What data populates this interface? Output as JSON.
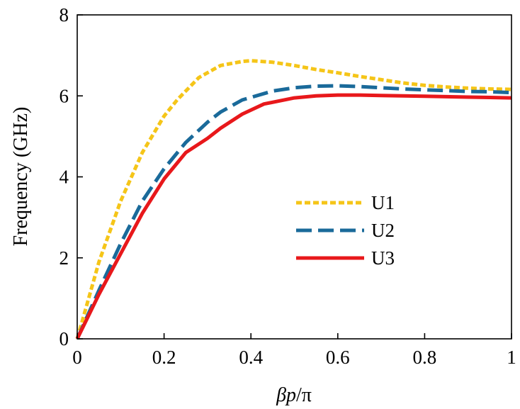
{
  "chart_data": {
    "type": "line",
    "title": "",
    "xlabel_parts": [
      {
        "text": "β",
        "italic": true
      },
      {
        "text": "p",
        "italic": true
      },
      {
        "text": "/π",
        "italic": false
      }
    ],
    "ylabel": "Frequency (GHz)",
    "xlim": [
      0,
      1
    ],
    "ylim": [
      0,
      8
    ],
    "xticks": [
      0,
      0.2,
      0.4,
      0.6,
      0.8,
      1
    ],
    "xtick_labels": [
      "0",
      "0.2",
      "0.4",
      "0.6",
      "0.8",
      "1"
    ],
    "yticks": [
      0,
      2,
      4,
      6,
      8
    ],
    "ytick_labels": [
      "0",
      "2",
      "4",
      "6",
      "8"
    ],
    "grid": false,
    "legend_position": "center-right",
    "series": [
      {
        "name": "U1",
        "color": "#F5C518",
        "dash": "dotted",
        "x": [
          0,
          0.05,
          0.1,
          0.15,
          0.2,
          0.23,
          0.28,
          0.33,
          0.38,
          0.4,
          0.45,
          0.5,
          0.55,
          0.6,
          0.65,
          0.7,
          0.75,
          0.8,
          0.85,
          0.9,
          0.95,
          1.0
        ],
        "y": [
          0,
          1.9,
          3.4,
          4.6,
          5.5,
          5.9,
          6.45,
          6.75,
          6.85,
          6.87,
          6.83,
          6.75,
          6.65,
          6.57,
          6.48,
          6.4,
          6.32,
          6.26,
          6.22,
          6.19,
          6.17,
          6.16
        ]
      },
      {
        "name": "U2",
        "color": "#1A6A9A",
        "dash": "dashed",
        "x": [
          0,
          0.05,
          0.1,
          0.15,
          0.2,
          0.25,
          0.3,
          0.33,
          0.38,
          0.45,
          0.5,
          0.55,
          0.6,
          0.65,
          0.7,
          0.75,
          0.8,
          0.85,
          0.9,
          0.95,
          1.0
        ],
        "y": [
          0,
          1.2,
          2.35,
          3.4,
          4.2,
          4.85,
          5.35,
          5.6,
          5.9,
          6.12,
          6.2,
          6.24,
          6.25,
          6.23,
          6.2,
          6.17,
          6.15,
          6.13,
          6.11,
          6.1,
          6.08
        ]
      },
      {
        "name": "U3",
        "color": "#E8181B",
        "dash": "solid",
        "x": [
          0,
          0.05,
          0.1,
          0.15,
          0.2,
          0.25,
          0.3,
          0.33,
          0.38,
          0.43,
          0.5,
          0.55,
          0.6,
          0.65,
          0.7,
          0.75,
          0.8,
          0.85,
          0.9,
          0.95,
          1.0
        ],
        "y": [
          0,
          1.1,
          2.1,
          3.1,
          3.95,
          4.6,
          4.95,
          5.2,
          5.55,
          5.8,
          5.95,
          6.0,
          6.02,
          6.02,
          6.01,
          6.0,
          5.99,
          5.98,
          5.97,
          5.96,
          5.95
        ]
      }
    ]
  }
}
